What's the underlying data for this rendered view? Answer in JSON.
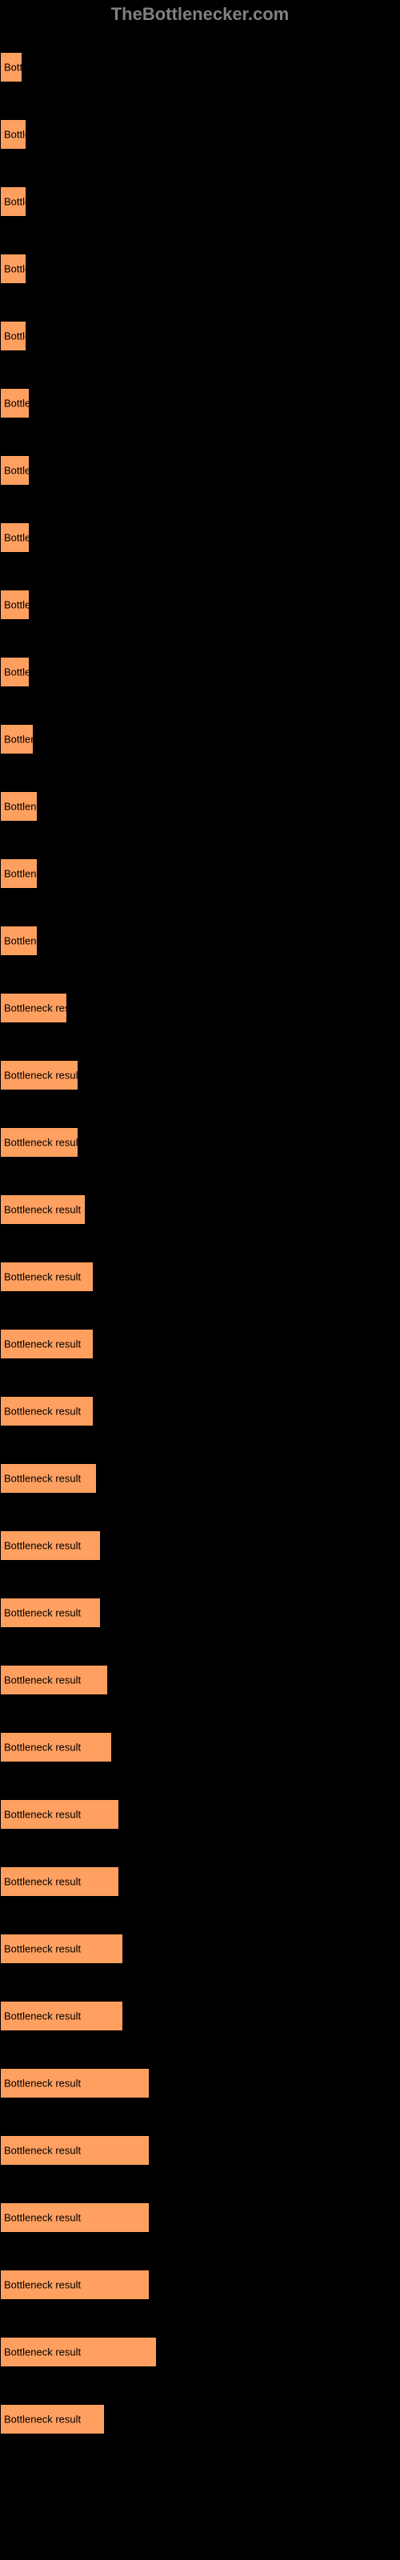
{
  "header": {
    "brand": "TheBottlenecker.com"
  },
  "chart": {
    "type": "bar",
    "bar_color": "#ffa060",
    "bar_border_color": "#000000",
    "background_color": "#000000",
    "text_color": "#000000",
    "header_color": "#808080",
    "bar_label": "Bottleneck result",
    "max_value": 60,
    "bars": [
      {
        "value": 6
      },
      {
        "value": 7
      },
      {
        "value": 7
      },
      {
        "value": 7
      },
      {
        "value": 7
      },
      {
        "value": 8
      },
      {
        "value": 8
      },
      {
        "value": 8
      },
      {
        "value": 8
      },
      {
        "value": 8
      },
      {
        "value": 9
      },
      {
        "value": 10
      },
      {
        "value": 10
      },
      {
        "value": 10
      },
      {
        "value": 18
      },
      {
        "value": 21
      },
      {
        "value": 21
      },
      {
        "value": 23
      },
      {
        "value": 25
      },
      {
        "value": 25
      },
      {
        "value": 25
      },
      {
        "value": 26
      },
      {
        "value": 27
      },
      {
        "value": 27
      },
      {
        "value": 29
      },
      {
        "value": 30
      },
      {
        "value": 32
      },
      {
        "value": 32
      },
      {
        "value": 33
      },
      {
        "value": 33
      },
      {
        "value": 40
      },
      {
        "value": 40
      },
      {
        "value": 40
      },
      {
        "value": 40
      },
      {
        "value": 42
      },
      {
        "value": 28
      }
    ]
  }
}
